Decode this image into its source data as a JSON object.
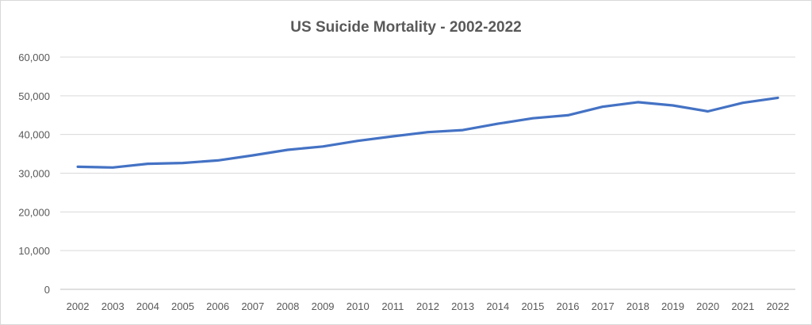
{
  "chart_data": {
    "type": "line",
    "title": "US Suicide Mortality - 2002-2022",
    "xlabel": "",
    "ylabel": "",
    "ylim": [
      0,
      60000
    ],
    "yticks": [
      0,
      10000,
      20000,
      30000,
      40000,
      50000,
      60000
    ],
    "ytick_labels": [
      "0",
      "10,000",
      "20,000",
      "30,000",
      "40,000",
      "50,000",
      "60,000"
    ],
    "grid": true,
    "legend": "none",
    "categories": [
      "2002",
      "2003",
      "2004",
      "2005",
      "2006",
      "2007",
      "2008",
      "2009",
      "2010",
      "2011",
      "2012",
      "2013",
      "2014",
      "2015",
      "2016",
      "2017",
      "2018",
      "2019",
      "2020",
      "2021",
      "2022"
    ],
    "series": [
      {
        "color": "#4472c4",
        "values": [
          31655,
          31484,
          32439,
          32637,
          33300,
          34598,
          36035,
          36909,
          38364,
          39518,
          40600,
          41149,
          42773,
          44193,
          44965,
          47173,
          48344,
          47511,
          45979,
          48183,
          49476
        ]
      }
    ]
  }
}
